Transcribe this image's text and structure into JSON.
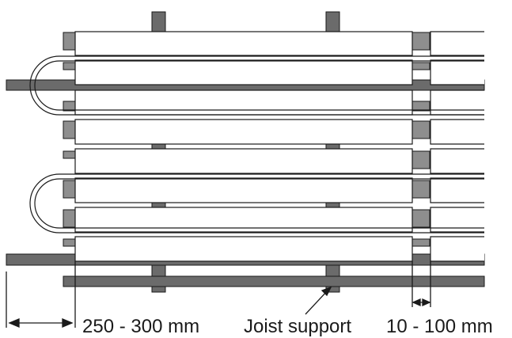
{
  "labels": {
    "spacing": "250 - 300 mm",
    "joist_support": "Joist support",
    "gap": "10 - 100 mm"
  },
  "colors": {
    "support": "#6b6b6b",
    "pipe_block": "#8e8e8e",
    "board_fill": "#ffffff",
    "line": "#1a1a1a"
  }
}
